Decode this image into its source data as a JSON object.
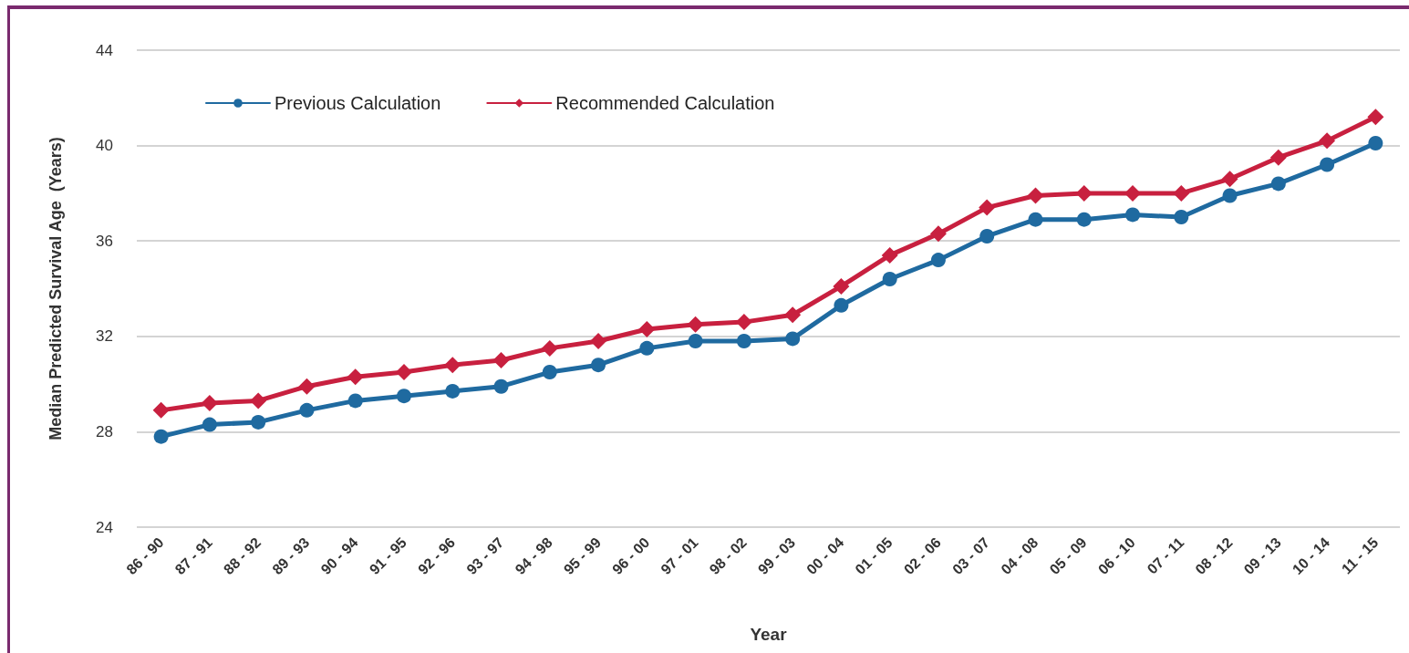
{
  "chart_data": {
    "type": "line",
    "xlabel": "Year",
    "ylabel": "Median Predicted Survival Age  (Years)",
    "categories": [
      "86 - 90",
      "87 - 91",
      "88 - 92",
      "89 - 93",
      "90 - 94",
      "91 - 95",
      "92 - 96",
      "93 - 97",
      "94 - 98",
      "95 - 99",
      "96 - 00",
      "97 - 01",
      "98 - 02",
      "99 - 03",
      "00 - 04",
      "01 - 05",
      "02 - 06",
      "03 - 07",
      "04 - 08",
      "05 - 09",
      "06 - 10",
      "07 - 11",
      "08 - 12",
      "09 - 13",
      "10 - 14",
      "11 - 15"
    ],
    "series": [
      {
        "name": "Previous Calculation",
        "color": "#1f6aa0",
        "marker": "circle",
        "values": [
          27.8,
          28.3,
          28.4,
          28.9,
          29.3,
          29.5,
          29.7,
          29.9,
          30.5,
          30.8,
          31.5,
          31.8,
          31.8,
          31.9,
          33.3,
          34.4,
          35.2,
          36.2,
          36.9,
          36.9,
          37.1,
          37.0,
          37.9,
          38.4,
          39.2,
          40.1
        ]
      },
      {
        "name": "Recommended Calculation",
        "color": "#c8203f",
        "marker": "diamond",
        "values": [
          28.9,
          29.2,
          29.3,
          29.9,
          30.3,
          30.5,
          30.8,
          31.0,
          31.5,
          31.8,
          32.3,
          32.5,
          32.6,
          32.9,
          34.1,
          35.4,
          36.3,
          37.4,
          37.9,
          38.0,
          38.0,
          38.0,
          38.6,
          39.5,
          40.2,
          41.2
        ]
      }
    ],
    "ylim": [
      24,
      44
    ],
    "yticks": [
      24,
      28,
      32,
      36,
      40,
      44
    ],
    "grid": "y",
    "legend": "top left",
    "line_style": "solid"
  }
}
